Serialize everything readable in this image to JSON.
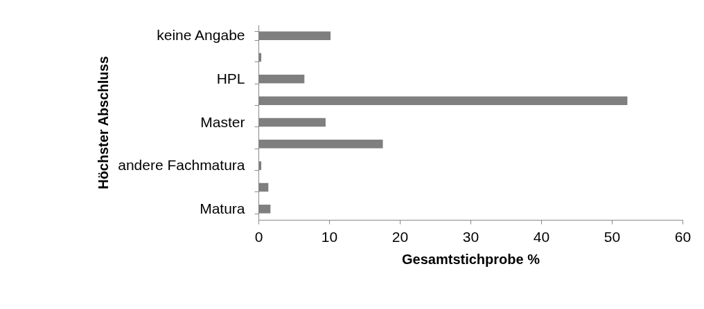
{
  "chart_data": {
    "type": "bar",
    "orientation": "horizontal",
    "xlabel": "Gesamtstichprobe %",
    "ylabel": "Höchster Abschluss",
    "categories": [
      "keine Angabe",
      null,
      "HPL",
      null,
      "Master",
      null,
      "andere Fachmatura",
      null,
      "Matura"
    ],
    "values": [
      10.2,
      0.4,
      6.5,
      52.2,
      9.5,
      17.6,
      0.4,
      1.4,
      1.7
    ],
    "color": "#7f7f7f",
    "xlim": [
      0,
      60
    ],
    "xticks": [
      0,
      10,
      20,
      30,
      40,
      50,
      60
    ]
  }
}
